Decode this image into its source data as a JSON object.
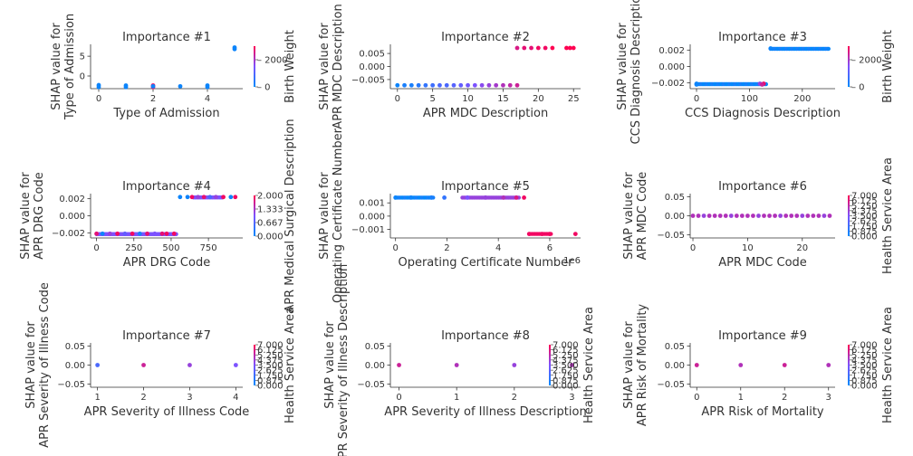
{
  "colors": {
    "low": "#008afb",
    "high": "#ff0051",
    "axis": "#333333"
  },
  "chart_data": [
    {
      "type": "scatter",
      "title": "Importance #1",
      "xlabel": "Type of Admission",
      "ylabel": "SHAP value for\nType of Admission",
      "xlim": [
        -0.3,
        5.3
      ],
      "ylim": [
        -3.2,
        8.0
      ],
      "xticks": [
        0,
        2,
        4
      ],
      "xtick_labels": [
        "0",
        "2",
        "4"
      ],
      "yticks": [
        0,
        5
      ],
      "ytick_labels": [
        "0",
        "5"
      ],
      "color_label": "Birth Weight",
      "cbar_ticks": [
        0,
        2000
      ],
      "cbar_tick_labels": [
        "0",
        "2000"
      ],
      "cbar_range": [
        0,
        3000
      ],
      "points": [
        [
          0,
          -2.3,
          0.05
        ],
        [
          0,
          -2.8,
          0.05
        ],
        [
          1,
          -2.4,
          0.05
        ],
        [
          1,
          -2.8,
          0.05
        ],
        [
          2,
          -2.4,
          0.95
        ],
        [
          2,
          -2.8,
          0.95
        ],
        [
          2,
          -2.6,
          0.05
        ],
        [
          3,
          -2.6,
          0.05
        ],
        [
          4,
          -2.4,
          0.05
        ],
        [
          4,
          -2.8,
          0.05
        ],
        [
          5,
          7.2,
          0.05
        ],
        [
          5,
          6.8,
          0.05
        ]
      ]
    },
    {
      "type": "scatter",
      "title": "Importance #2",
      "xlabel": "APR MDC Description",
      "ylabel": "SHAP value for\nAPR MDC Description",
      "xlim": [
        -1,
        26
      ],
      "ylim": [
        -0.0085,
        0.0085
      ],
      "xticks": [
        0,
        5,
        10,
        15,
        20,
        25
      ],
      "xtick_labels": [
        "0",
        "5",
        "10",
        "15",
        "20",
        "25"
      ],
      "yticks": [
        -0.005,
        0,
        0.005
      ],
      "ytick_labels": [
        "−0.005",
        "0.000",
        "0.005"
      ],
      "color_label": "",
      "cbar_ticks": [],
      "cbar_tick_labels": [],
      "cbar_range": [
        0,
        1
      ],
      "points": [
        [
          0,
          -0.0072,
          0.05
        ],
        [
          1,
          -0.0072,
          0.1
        ],
        [
          2,
          -0.0072,
          0.1
        ],
        [
          3,
          -0.0072,
          0.15
        ],
        [
          4,
          -0.0072,
          0.2
        ],
        [
          5,
          -0.0072,
          0.25
        ],
        [
          6,
          -0.0072,
          0.3
        ],
        [
          7,
          -0.0072,
          0.3
        ],
        [
          8,
          -0.0072,
          0.35
        ],
        [
          9,
          -0.0072,
          0.4
        ],
        [
          10,
          -0.0072,
          0.45
        ],
        [
          11,
          -0.0072,
          0.5
        ],
        [
          12,
          -0.0072,
          0.55
        ],
        [
          13,
          -0.0072,
          0.6
        ],
        [
          14,
          -0.0072,
          0.65
        ],
        [
          15,
          -0.0072,
          0.7
        ],
        [
          16,
          -0.0072,
          0.75
        ],
        [
          17,
          -0.0072,
          0.8
        ],
        [
          17,
          0.0071,
          0.85
        ],
        [
          18,
          0.0071,
          0.9
        ],
        [
          19,
          0.0071,
          0.9
        ],
        [
          20,
          0.0071,
          0.95
        ],
        [
          21,
          0.0071,
          0.95
        ],
        [
          22,
          0.0071,
          1.0
        ],
        [
          24,
          0.0071,
          1.0
        ],
        [
          24.5,
          0.0071,
          1.0
        ],
        [
          25,
          0.0071,
          1.0
        ]
      ]
    },
    {
      "type": "scatter",
      "title": "Importance #3",
      "xlabel": "CCS Diagnosis Description",
      "ylabel": "SHAP value for\nCCS Diagnosis Description",
      "xlim": [
        -12,
        262
      ],
      "ylim": [
        -0.0027,
        0.0027
      ],
      "xticks": [
        0,
        100,
        200
      ],
      "xtick_labels": [
        "0",
        "100",
        "200"
      ],
      "yticks": [
        -0.002,
        0,
        0.002
      ],
      "ytick_labels": [
        "−0.002",
        "0.000",
        "0.002"
      ],
      "color_label": "Birth Weight",
      "cbar_ticks": [
        0,
        2000
      ],
      "cbar_tick_labels": [
        "0",
        "2000"
      ],
      "cbar_range": [
        0,
        3000
      ],
      "points": [
        [
          0,
          -0.0021,
          0.05
        ],
        [
          0,
          -0.0022,
          0.05
        ],
        [
          127,
          -0.0021,
          0.95
        ],
        [
          120,
          -0.0021,
          0.6
        ],
        [
          124,
          -0.0022,
          0.8
        ],
        [
          140,
          0.0022,
          0.05
        ]
      ],
      "segments": [
        [
          0,
          132,
          -0.00215,
          0.05
        ],
        [
          140,
          250,
          0.00215,
          0.05
        ]
      ]
    },
    {
      "type": "scatter",
      "title": "Importance #4",
      "xlabel": "APR DRG Code",
      "ylabel": "SHAP value for\nAPR DRG Code",
      "xlim": [
        -40,
        980
      ],
      "ylim": [
        -0.0026,
        0.0026
      ],
      "xticks": [
        0,
        250,
        500,
        750
      ],
      "xtick_labels": [
        "0",
        "250",
        "500",
        "750"
      ],
      "yticks": [
        -0.002,
        0,
        0.002
      ],
      "ytick_labels": [
        "−0.002",
        "0.000",
        "0.002"
      ],
      "color_label": "APR Medical Surgical Description",
      "cbar_ticks": [
        0,
        0.667,
        1.333,
        2
      ],
      "cbar_tick_labels": [
        "0.000",
        "0.667",
        "1.333",
        "2.000"
      ],
      "cbar_range": [
        0,
        2
      ],
      "points": [
        [
          0,
          -0.0021,
          0.9
        ],
        [
          40,
          -0.0021,
          0.05
        ],
        [
          90,
          -0.0021,
          0.6
        ],
        [
          140,
          -0.0021,
          0.95
        ],
        [
          190,
          -0.0021,
          0.4
        ],
        [
          240,
          -0.0021,
          0.95
        ],
        [
          290,
          -0.0021,
          0.1
        ],
        [
          340,
          -0.0021,
          0.9
        ],
        [
          390,
          -0.0021,
          0.5
        ],
        [
          440,
          -0.0021,
          0.9
        ],
        [
          470,
          -0.0021,
          0.95
        ],
        [
          520,
          -0.0021,
          0.95
        ],
        [
          560,
          0.0022,
          0.05
        ],
        [
          610,
          0.0022,
          0.05
        ],
        [
          640,
          0.0022,
          0.95
        ],
        [
          680,
          0.0022,
          0.6
        ],
        [
          720,
          0.0022,
          0.9
        ],
        [
          760,
          0.0022,
          0.3
        ],
        [
          800,
          0.0022,
          0.6
        ],
        [
          850,
          0.0022,
          0.95
        ],
        [
          900,
          0.0022,
          0.05
        ],
        [
          930,
          0.0022,
          0.95
        ]
      ],
      "segments": [
        [
          0,
          540,
          -0.00215,
          0.5
        ],
        [
          650,
          850,
          0.00215,
          0.5
        ]
      ]
    },
    {
      "type": "scatter",
      "title": "Importance #5",
      "xlabel": "Operating Certificate Number",
      "ylabel": "SHAP value for\nOperating Certificate Number",
      "xlim": [
        -200000,
        7200000
      ],
      "ylim": [
        -0.00165,
        0.0017
      ],
      "xticks": [
        0,
        2000000,
        4000000,
        6000000
      ],
      "xtick_labels": [
        "0",
        "2",
        "4",
        "6"
      ],
      "x_offset_label": "1e6",
      "yticks": [
        -0.001,
        0,
        0.001
      ],
      "ytick_labels": [
        "−0.001",
        "0.000",
        "0.001"
      ],
      "color_label": "",
      "cbar_ticks": [],
      "cbar_tick_labels": [],
      "cbar_range": [
        0,
        1
      ],
      "points": [
        [
          0,
          0.0014,
          0.05
        ],
        [
          600000,
          0.0014,
          0.05
        ],
        [
          1400000,
          0.0014,
          0.1
        ],
        [
          1900000,
          0.0014,
          0.2
        ],
        [
          2800000,
          0.0014,
          0.5
        ],
        [
          3500000,
          0.0014,
          0.6
        ],
        [
          4200000,
          0.0014,
          0.7
        ],
        [
          4700000,
          0.0014,
          0.85
        ],
        [
          5000000,
          0.0014,
          0.95
        ],
        [
          5200000,
          -0.00135,
          0.95
        ],
        [
          5700000,
          -0.00135,
          0.95
        ],
        [
          6000000,
          -0.00135,
          0.95
        ],
        [
          7000000,
          -0.00135,
          0.95
        ]
      ],
      "segments": [
        [
          0,
          1500000,
          0.0014,
          0.05
        ],
        [
          2600000,
          4800000,
          0.0014,
          0.6
        ],
        [
          5200000,
          6100000,
          -0.00135,
          0.95
        ]
      ]
    },
    {
      "type": "scatter",
      "title": "Importance #6",
      "xlabel": "APR MDC Code",
      "ylabel": "SHAP value for\nAPR MDC Code",
      "xlim": [
        -0.5,
        26
      ],
      "ylim": [
        -0.058,
        0.058
      ],
      "xticks": [
        0,
        10,
        20
      ],
      "xtick_labels": [
        "0",
        "10",
        "20"
      ],
      "yticks": [
        -0.05,
        0,
        0.05
      ],
      "ytick_labels": [
        "−0.05",
        "0.00",
        "0.05"
      ],
      "color_label": "Health Service Area",
      "cbar_ticks": [
        0,
        0.875,
        1.75,
        2.625,
        3.5,
        4.375,
        5.25,
        6.125,
        7
      ],
      "cbar_tick_labels": [
        "0.000",
        "0.875",
        "1.750",
        "2.625",
        "3.500",
        "4.375",
        "5.250",
        "6.125",
        "7.000"
      ],
      "cbar_range": [
        0,
        7
      ],
      "points": [
        [
          0,
          0,
          0.7
        ],
        [
          1,
          0,
          0.7
        ],
        [
          2,
          0,
          0.6
        ],
        [
          3,
          0,
          0.7
        ],
        [
          4,
          0,
          0.7
        ],
        [
          5,
          0,
          0.7
        ],
        [
          6,
          0,
          0.7
        ],
        [
          7,
          0,
          0.6
        ],
        [
          8,
          0,
          0.7
        ],
        [
          9,
          0,
          0.7
        ],
        [
          10,
          0,
          0.7
        ],
        [
          11,
          0,
          0.7
        ],
        [
          12,
          0,
          0.6
        ],
        [
          13,
          0,
          0.7
        ],
        [
          14,
          0,
          0.7
        ],
        [
          15,
          0,
          0.7
        ],
        [
          16,
          0,
          0.6
        ],
        [
          17,
          0,
          0.7
        ],
        [
          18,
          0,
          0.7
        ],
        [
          19,
          0,
          0.7
        ],
        [
          20,
          0,
          0.6
        ],
        [
          21,
          0,
          0.7
        ],
        [
          22,
          0,
          0.7
        ],
        [
          23,
          0,
          0.7
        ],
        [
          24,
          0,
          0.6
        ],
        [
          25,
          0,
          0.7
        ]
      ]
    },
    {
      "type": "scatter",
      "title": "Importance #7",
      "xlabel": "APR Severity of Illness Code",
      "ylabel": "SHAP value for\nAPR Severity of Illness Code",
      "xlim": [
        0.85,
        4.15
      ],
      "ylim": [
        -0.058,
        0.058
      ],
      "xticks": [
        1,
        2,
        3,
        4
      ],
      "xtick_labels": [
        "1",
        "2",
        "3",
        "4"
      ],
      "yticks": [
        -0.05,
        0,
        0.05
      ],
      "ytick_labels": [
        "−0.05",
        "0.00",
        "0.05"
      ],
      "color_label": "Health Service Area",
      "cbar_ticks": [
        0,
        0.875,
        1.75,
        2.625,
        3.5,
        4.375,
        5.25,
        6.125,
        7
      ],
      "cbar_tick_labels": [
        "0.000",
        "0.875",
        "1.750",
        "2.625",
        "3.500",
        "4.375",
        "5.250",
        "6.125",
        "7.000"
      ],
      "cbar_range": [
        0,
        7
      ],
      "points": [
        [
          1,
          0,
          0.3
        ],
        [
          2,
          0,
          0.8
        ],
        [
          3,
          0,
          0.6
        ],
        [
          4,
          0,
          0.5
        ]
      ]
    },
    {
      "type": "scatter",
      "title": "Importance #8",
      "xlabel": "APR Severity of Illness Description",
      "ylabel": "SHAP value for\nAPR Severity of Illness Description",
      "xlim": [
        -0.15,
        3.15
      ],
      "ylim": [
        -0.058,
        0.058
      ],
      "xticks": [
        0,
        1,
        2,
        3
      ],
      "xtick_labels": [
        "0",
        "1",
        "2",
        "3"
      ],
      "yticks": [
        -0.05,
        0,
        0.05
      ],
      "ytick_labels": [
        "−0.05",
        "0.00",
        "0.05"
      ],
      "color_label": "Health Service Area",
      "cbar_ticks": [
        0,
        0.875,
        1.75,
        2.625,
        3.5,
        4.375,
        5.25,
        6.125,
        7
      ],
      "cbar_tick_labels": [
        "0.000",
        "0.875",
        "1.750",
        "2.625",
        "3.500",
        "4.375",
        "5.250",
        "6.125",
        "7.000"
      ],
      "cbar_range": [
        0,
        7
      ],
      "points": [
        [
          0,
          0,
          0.8
        ],
        [
          1,
          0,
          0.7
        ],
        [
          2,
          0,
          0.6
        ],
        [
          3,
          0,
          0.7
        ]
      ]
    },
    {
      "type": "scatter",
      "title": "Importance #9",
      "xlabel": "APR Risk of Mortality",
      "ylabel": "SHAP value for\nAPR Risk of Mortality",
      "xlim": [
        -0.15,
        3.15
      ],
      "ylim": [
        -0.058,
        0.058
      ],
      "xticks": [
        0,
        1,
        2,
        3
      ],
      "xtick_labels": [
        "0",
        "1",
        "2",
        "3"
      ],
      "yticks": [
        -0.05,
        0,
        0.05
      ],
      "ytick_labels": [
        "−0.05",
        "0.00",
        "0.05"
      ],
      "color_label": "Health Service Area",
      "cbar_ticks": [
        0,
        0.875,
        1.75,
        2.625,
        3.5,
        4.375,
        5.25,
        6.125,
        7
      ],
      "cbar_tick_labels": [
        "0.000",
        "0.875",
        "1.750",
        "2.625",
        "3.500",
        "4.375",
        "5.250",
        "6.125",
        "7.000"
      ],
      "cbar_range": [
        0,
        7
      ],
      "points": [
        [
          0,
          0,
          0.8
        ],
        [
          1,
          0,
          0.7
        ],
        [
          2,
          0,
          0.8
        ],
        [
          3,
          0,
          0.7
        ]
      ]
    }
  ]
}
